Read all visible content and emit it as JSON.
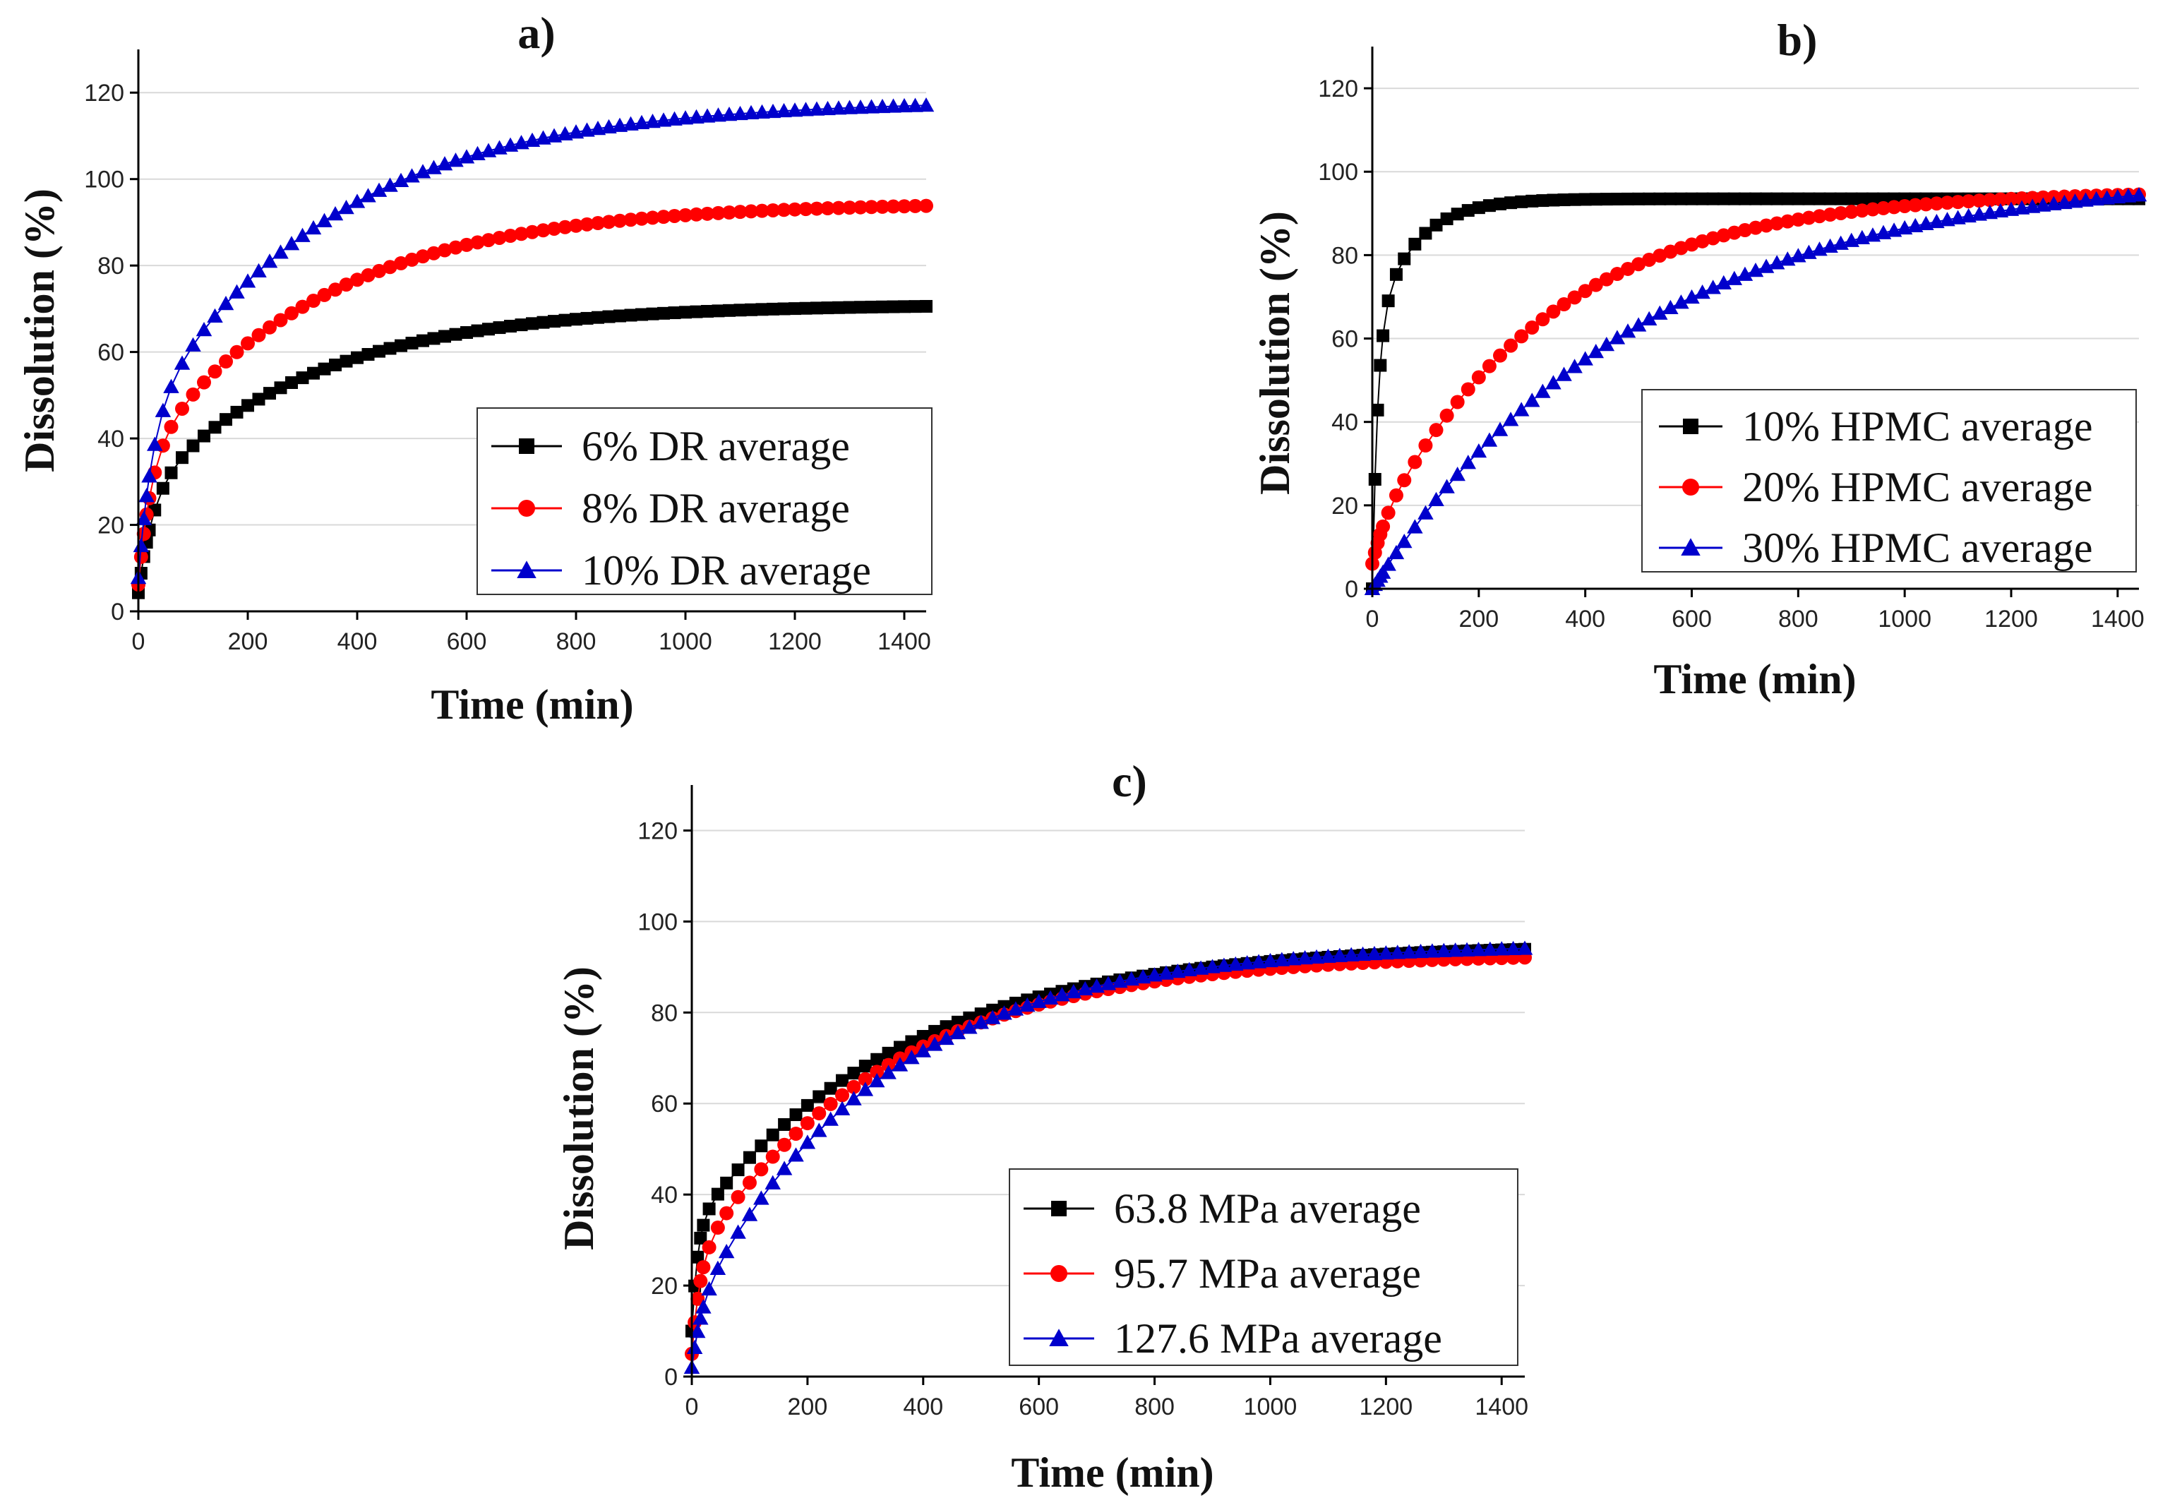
{
  "chart_data": [
    {
      "type": "scatter",
      "panel": "a",
      "title": "a)",
      "xlabel": "Time (min)",
      "ylabel": "Dissolution (%)",
      "xlim": [
        0,
        1440
      ],
      "ylim": [
        0,
        130
      ],
      "xticks": [
        0,
        200,
        400,
        600,
        800,
        1000,
        1200,
        1400
      ],
      "yticks": [
        0,
        20,
        40,
        60,
        80,
        100,
        120
      ],
      "grid": true,
      "legend_position": "bottom-right",
      "series": [
        {
          "name": "6% DR average",
          "color": "#000000",
          "marker": "square",
          "model": {
            "a": 4.3,
            "p1": 22.4,
            "p2": 44.3,
            "k1": 0.0373,
            "k2": 0.0032
          }
        },
        {
          "name": "8% DR average",
          "color": "#ff0000",
          "marker": "circle",
          "model": {
            "a": 6.2,
            "p1": 29.0,
            "p2": 59.4,
            "k1": 0.0421,
            "k2": 0.003
          }
        },
        {
          "name": "10% DR average",
          "color": "#0000cc",
          "marker": "triangle",
          "model": {
            "a": 7.8,
            "p1": 35.7,
            "p2": 74.7,
            "k1": 0.0388,
            "k2": 0.0029
          }
        }
      ]
    },
    {
      "type": "scatter",
      "panel": "b",
      "title": "b)",
      "xlabel": "Time (min)",
      "ylabel": "Dissolution (%)",
      "xlim": [
        0,
        1440
      ],
      "ylim": [
        0,
        130
      ],
      "xticks": [
        0,
        200,
        400,
        600,
        800,
        1000,
        1200,
        1400
      ],
      "yticks": [
        0,
        20,
        40,
        60,
        80,
        100,
        120
      ],
      "grid": true,
      "legend_position": "bottom-right",
      "series": [
        {
          "name": "10% HPMC average",
          "color": "#000000",
          "marker": "square",
          "model": {
            "a": 0.0,
            "p1": 61.3,
            "p2": 32.2,
            "k1": 0.1,
            "k2": 0.0136
          }
        },
        {
          "name": "20% HPMC average",
          "color": "#ff0000",
          "marker": "circle",
          "model": {
            "a": 6.0,
            "p1": 6.2,
            "p2": 83.3,
            "k1": 0.05,
            "k2": 0.0031
          }
        },
        {
          "name": "30% HPMC average",
          "color": "#0000cc",
          "marker": "triangle",
          "model": {
            "a": 0.0,
            "p1": 0.0,
            "p2": 100.0,
            "k1": 0.05,
            "k2": 0.002
          }
        }
      ]
    },
    {
      "type": "scatter",
      "panel": "c",
      "title": "c)",
      "xlabel": "Time (min)",
      "ylabel": "Dissolution (%)",
      "xlim": [
        0,
        1440
      ],
      "ylim": [
        0,
        130
      ],
      "xticks": [
        0,
        200,
        400,
        600,
        800,
        1000,
        1200,
        1400
      ],
      "yticks": [
        0,
        20,
        40,
        60,
        80,
        100,
        120
      ],
      "grid": true,
      "legend_position": "bottom-right",
      "series": [
        {
          "name": "63.8 MPa average",
          "color": "#000000",
          "marker": "square",
          "model": {
            "a": 10.0,
            "p1": 23.0,
            "p2": 62.0,
            "k1": 0.1,
            "k2": 0.0028
          }
        },
        {
          "name": "95.7 MPa average",
          "color": "#ff0000",
          "marker": "circle",
          "model": {
            "a": 5.0,
            "p1": 20.0,
            "p2": 68.0,
            "k1": 0.07,
            "k2": 0.003
          }
        },
        {
          "name": "127.6 MPa average",
          "color": "#0000cc",
          "marker": "triangle",
          "model": {
            "a": 2.0,
            "p1": 12.0,
            "p2": 81.0,
            "k1": 0.06,
            "k2": 0.0031
          }
        }
      ]
    }
  ]
}
